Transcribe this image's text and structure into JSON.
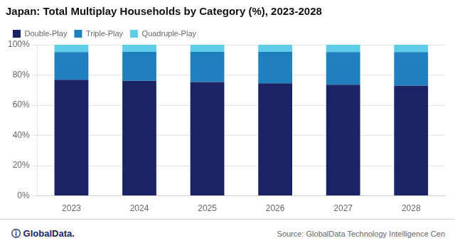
{
  "chart_data": {
    "type": "bar",
    "title": "Japan: Total Multiplay Households by Category (%), 2023-2028",
    "categories": [
      "2023",
      "2024",
      "2025",
      "2026",
      "2027",
      "2028"
    ],
    "series": [
      {
        "name": "Double-Play",
        "color": "#1a2464",
        "values": [
          76.8,
          76.1,
          75.3,
          74.5,
          73.6,
          72.9
        ]
      },
      {
        "name": "Triple-Play",
        "color": "#2080be",
        "values": [
          18.4,
          19.2,
          20.0,
          20.8,
          21.6,
          22.3
        ]
      },
      {
        "name": "Quadruple-Play",
        "color": "#5ecde8",
        "values": [
          4.8,
          4.7,
          4.7,
          4.7,
          4.8,
          4.8
        ]
      }
    ],
    "stacked": true,
    "ylim": [
      0,
      100
    ],
    "yticks": [
      {
        "value": 0,
        "label": "0%"
      },
      {
        "value": 20,
        "label": "20%"
      },
      {
        "value": 40,
        "label": "40%"
      },
      {
        "value": 60,
        "label": "60%"
      },
      {
        "value": 80,
        "label": "80%"
      },
      {
        "value": 100,
        "label": "100%"
      }
    ],
    "grid": true,
    "legend": "top-left",
    "annotations": [
      "ⓘ GlobalData.",
      "Source: GlobalData Technology Intelligence Cen"
    ]
  }
}
